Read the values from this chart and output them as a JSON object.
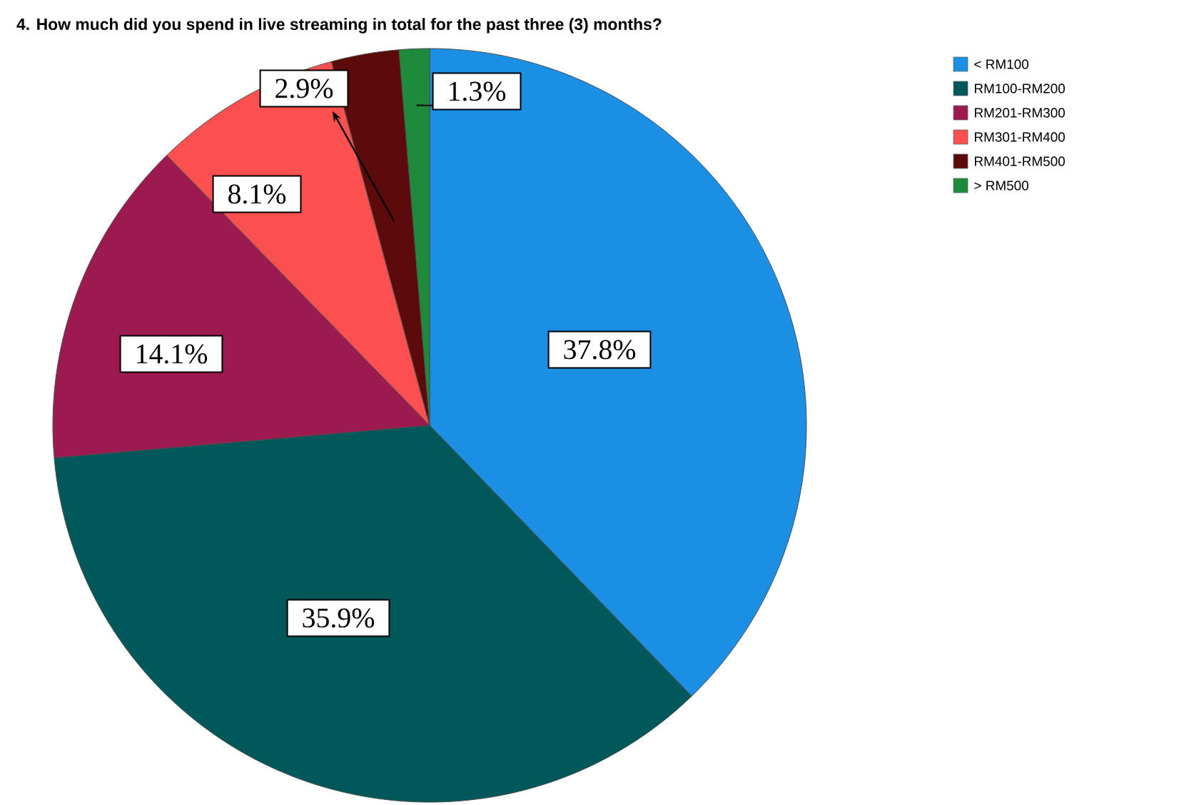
{
  "chart_data": {
    "type": "pie",
    "title": "4. How much did you spend in live streaming in total for the past three (3) months?",
    "categories": [
      "< RM100",
      "RM100-RM200",
      "RM201-RM300",
      "RM301-RM400",
      "RM401-RM500",
      "> RM500"
    ],
    "values": [
      37.8,
      35.9,
      14.1,
      8.1,
      2.9,
      1.3
    ],
    "value_labels": [
      "37.8%",
      "35.9%",
      "14.1%",
      "8.1%",
      "2.9%",
      "1.3%"
    ],
    "colors": [
      "#1a8fe3",
      "#00585a",
      "#9c1a50",
      "#fc5050",
      "#5c0a0a",
      "#1e8a3c"
    ],
    "legend": "top right"
  }
}
